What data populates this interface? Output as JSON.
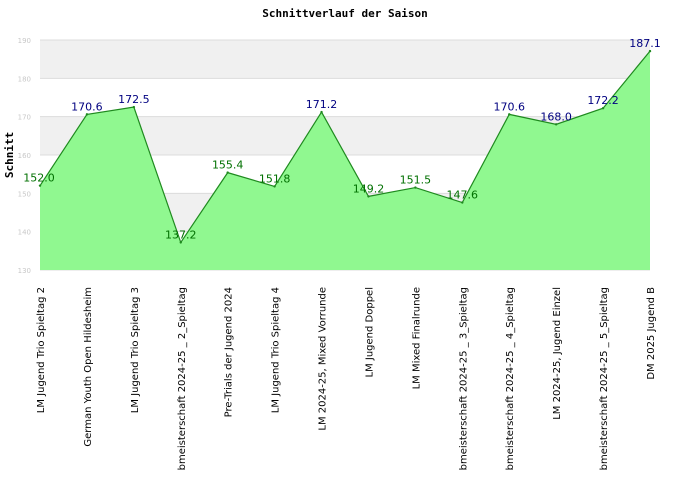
{
  "chart_data": {
    "type": "area",
    "title": "Schnittverlauf der Saison",
    "xlabel": "",
    "ylabel": "Schnitt",
    "ylim": [
      130,
      190
    ],
    "yticks": [
      130,
      140,
      150,
      160,
      170,
      180,
      190
    ],
    "grid": true,
    "legend": "none",
    "categories": [
      "LM Jugend Trio Spieltag 2",
      "German Youth Open Hildesheim",
      "LM Jugend Trio Spieltag 3",
      "bmeisterschaft 2024-25 _ 2_Spieltag",
      "Pre-Trials der Jugend 2024",
      "LM Jugend Trio Spieltag 4",
      "LM 2024-25, Mixed Vorrunde",
      "LM Jugend Doppel",
      "LM Mixed Finalrunde",
      "bmeisterschaft 2024-25 _ 3_Spieltag",
      "bmeisterschaft 2024-25 _ 4_Spieltag",
      "LM 2024-25, Jugend Einzel",
      "bmeisterschaft 2024-25 _ 5_Spieltag",
      "DM 2025 Jugend B"
    ],
    "series": [
      {
        "values": [
          152.0,
          170.6,
          172.5,
          137.2,
          155.4,
          151.8,
          171.2,
          149.2,
          151.5,
          147.6,
          170.6,
          168.0,
          172.2,
          187.1
        ]
      }
    ],
    "data_labels": [
      "152.0",
      "170.6",
      "172.5",
      "137.2",
      "155.4",
      "151.8",
      "171.2",
      "149.2",
      "151.5",
      "147.6",
      "170.6",
      "168.0",
      "172.2",
      "187.1"
    ],
    "colors": {
      "fill": "#90f890",
      "line": "#1f8a1f",
      "band": "#f0f0f0",
      "grid": "#dcdcdc",
      "label_high": "#000080",
      "label_low": "#007000"
    }
  }
}
